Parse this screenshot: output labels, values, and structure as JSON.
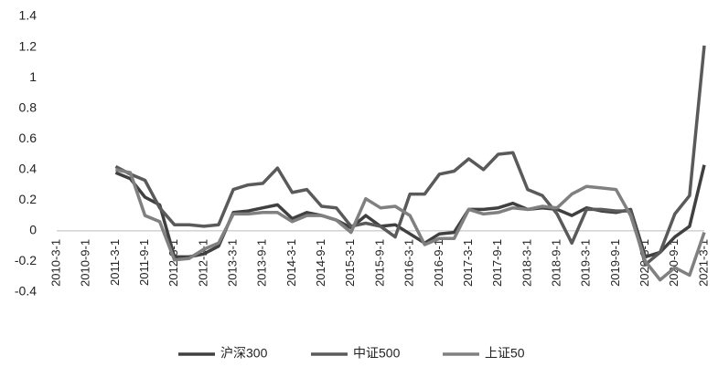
{
  "chart_data": {
    "type": "line",
    "categories": [
      "2010-3-1",
      null,
      "2010-9-1",
      null,
      "2011-3-1",
      null,
      "2011-9-1",
      null,
      "2012-3-1",
      null,
      "2012-9-1",
      null,
      "2013-3-1",
      null,
      "2013-9-1",
      null,
      "2014-3-1",
      null,
      "2014-9-1",
      null,
      "2015-3-1",
      null,
      "2015-9-1",
      null,
      "2016-3-1",
      null,
      "2016-9-1",
      null,
      "2017-3-1",
      null,
      "2017-9-1",
      null,
      "2018-3-1",
      null,
      "2018-9-1",
      null,
      "2019-3-1",
      null,
      "2019-9-1",
      null,
      "2020-3-1",
      null,
      "2020-9-1",
      null,
      "2021-3-1"
    ],
    "series": [
      {
        "name": "沪深300",
        "color": "#404040",
        "values": [
          null,
          null,
          null,
          null,
          0.38,
          0.34,
          0.22,
          0.17,
          -0.17,
          -0.17,
          -0.15,
          -0.1,
          0.12,
          0.13,
          0.15,
          0.17,
          0.08,
          0.12,
          0.1,
          0.07,
          0.02,
          0.1,
          0.03,
          0.04,
          -0.02,
          -0.08,
          -0.02,
          -0.01,
          0.14,
          0.14,
          0.15,
          0.18,
          0.14,
          0.15,
          0.14,
          0.1,
          0.15,
          0.13,
          0.12,
          0.14,
          -0.17,
          -0.14,
          -0.04,
          0.03,
          0.43
        ]
      },
      {
        "name": "中证500",
        "color": "#5a5a5a",
        "values": [
          null,
          null,
          null,
          null,
          0.42,
          0.37,
          0.33,
          0.15,
          0.04,
          0.04,
          0.03,
          0.04,
          0.27,
          0.3,
          0.31,
          0.41,
          0.25,
          0.27,
          0.16,
          0.15,
          0.03,
          0.05,
          0.03,
          -0.04,
          0.24,
          0.24,
          0.37,
          0.39,
          0.47,
          0.4,
          0.5,
          0.51,
          0.27,
          0.23,
          0.11,
          -0.08,
          0.14,
          0.14,
          0.13,
          0.13,
          -0.22,
          -0.14,
          0.11,
          0.23,
          1.21
        ]
      },
      {
        "name": "上证50",
        "color": "#808080",
        "values": [
          null,
          null,
          null,
          null,
          0.4,
          0.38,
          0.1,
          0.06,
          -0.19,
          -0.18,
          -0.12,
          -0.08,
          0.11,
          0.11,
          0.12,
          0.12,
          0.06,
          0.1,
          0.1,
          0.07,
          -0.01,
          0.21,
          0.15,
          0.16,
          0.1,
          -0.09,
          -0.05,
          -0.05,
          0.14,
          0.11,
          0.12,
          0.15,
          0.14,
          0.16,
          0.15,
          0.24,
          0.29,
          0.28,
          0.27,
          0.1,
          -0.2,
          -0.32,
          -0.24,
          -0.29,
          -0.01
        ]
      }
    ],
    "ylim": [
      -0.4,
      1.4
    ],
    "yticks": [
      -0.4,
      -0.2,
      0,
      0.2,
      0.4,
      0.6,
      0.8,
      1,
      1.2,
      1.4
    ],
    "grid": false,
    "legend": "bottom"
  }
}
